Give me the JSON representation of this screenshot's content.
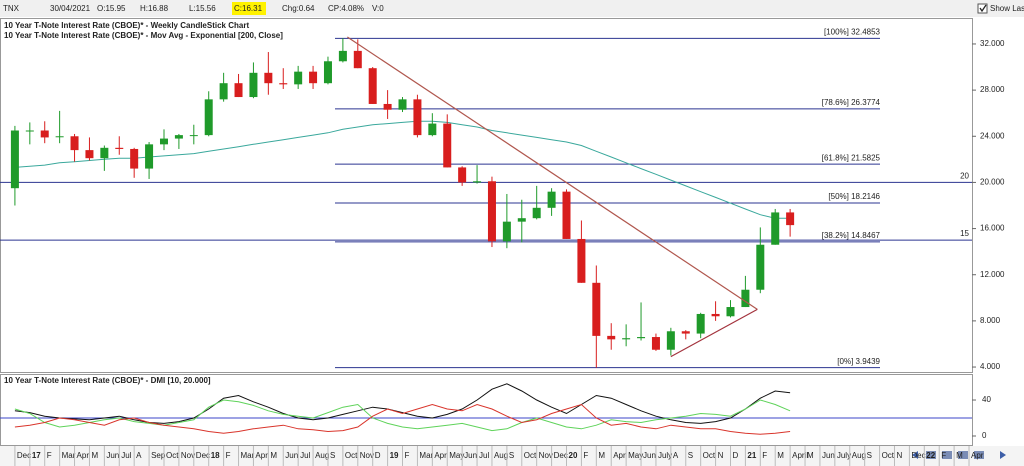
{
  "toolbar": {
    "symbol": "TNX",
    "date": "30/04/2021",
    "open": "O:15.95",
    "high": "H:16.88",
    "low": "L:15.56",
    "close": "C:16.31",
    "change": "Chg:0.64",
    "change_pct": "CP:4.08%",
    "volume": "V:0",
    "show_last": "Show Last"
  },
  "chart_data": [
    {
      "type": "candlestick",
      "title": "10 Year T-Note Interest Rate (CBOE)* - Weekly CandleStick Chart",
      "x": [
        0,
        1,
        2,
        3,
        4,
        5,
        6,
        7,
        8,
        9,
        10,
        11,
        12,
        13,
        14,
        15,
        16,
        17,
        18,
        19,
        20,
        21,
        22,
        23,
        24,
        25,
        26,
        27,
        28,
        29,
        30,
        31,
        32,
        33,
        34,
        35,
        36,
        37,
        38,
        39,
        40,
        41,
        42,
        43,
        44,
        45,
        46,
        47,
        48,
        49,
        50,
        51,
        52
      ],
      "open": [
        19.5,
        24.5,
        24.5,
        24.0,
        24.0,
        22.8,
        22.1,
        23.0,
        22.9,
        21.2,
        23.3,
        23.8,
        24.1,
        24.1,
        27.2,
        28.6,
        27.4,
        29.5,
        28.6,
        28.5,
        29.6,
        28.6,
        30.5,
        31.4,
        29.9,
        26.8,
        26.3,
        27.2,
        24.1,
        25.1,
        21.3,
        20.0,
        20.1,
        14.9,
        16.6,
        16.9,
        17.8,
        19.2,
        15.1,
        11.3,
        6.7,
        6.4,
        6.5,
        6.6,
        5.5,
        7.1,
        6.9,
        8.6,
        8.4,
        9.2,
        10.7,
        14.6,
        17.4
      ],
      "high": [
        24.9,
        25.2,
        25.3,
        26.2,
        24.2,
        23.9,
        23.2,
        24.0,
        23.0,
        23.5,
        24.6,
        24.2,
        25.0,
        27.9,
        29.5,
        29.4,
        30.4,
        31.3,
        29.9,
        30.1,
        30.1,
        30.9,
        32.5,
        32.4,
        30.0,
        28.0,
        27.4,
        27.6,
        26.0,
        25.9,
        21.4,
        21.5,
        20.5,
        19.0,
        18.5,
        19.7,
        19.5,
        19.4,
        16.7,
        12.8,
        7.8,
        7.7,
        9.6,
        6.9,
        7.4,
        7.2,
        8.7,
        9.7,
        9.8,
        11.9,
        16.1,
        17.7,
        17.7
      ],
      "low": [
        18.0,
        23.3,
        23.4,
        23.4,
        21.8,
        21.9,
        21.0,
        22.4,
        20.4,
        20.3,
        22.8,
        22.9,
        23.3,
        24.0,
        27.0,
        27.4,
        27.3,
        27.6,
        28.1,
        28.1,
        28.1,
        28.5,
        30.4,
        29.9,
        26.8,
        25.5,
        26.1,
        23.9,
        24.0,
        21.3,
        19.7,
        19.9,
        14.4,
        14.3,
        14.8,
        16.8,
        17.1,
        15.1,
        11.3,
        3.94,
        5.5,
        5.8,
        6.3,
        5.4,
        5.0,
        6.4,
        6.5,
        8.0,
        8.3,
        9.2,
        10.4,
        14.6,
        15.3
      ],
      "close": [
        24.5,
        24.5,
        23.9,
        24.0,
        22.8,
        22.1,
        23.0,
        22.9,
        21.2,
        23.3,
        23.8,
        24.1,
        24.1,
        27.2,
        28.6,
        27.4,
        29.5,
        28.6,
        28.5,
        29.6,
        28.6,
        30.5,
        31.4,
        29.9,
        26.8,
        26.3,
        27.2,
        24.1,
        25.1,
        21.3,
        20.0,
        20.1,
        14.9,
        16.6,
        16.9,
        17.8,
        19.2,
        15.1,
        11.3,
        6.7,
        6.4,
        6.5,
        6.6,
        5.5,
        7.1,
        6.9,
        8.6,
        8.4,
        9.2,
        10.7,
        14.6,
        17.4,
        16.3
      ],
      "up_color": "#1f9a2a",
      "down_color": "#d81e1e",
      "series": [
        {
          "name": "10 Year T-Note Interest Rate (CBOE)* - Mov Avg - Exponential [200, Close]",
          "color": "#3aa89c",
          "values": [
            21.3,
            21.4,
            21.5,
            21.7,
            21.8,
            21.9,
            22.0,
            22.1,
            22.1,
            22.2,
            22.3,
            22.4,
            22.5,
            22.7,
            22.9,
            23.1,
            23.3,
            23.5,
            23.7,
            23.9,
            24.1,
            24.3,
            24.6,
            24.8,
            25.0,
            25.1,
            25.2,
            25.3,
            25.3,
            25.2,
            25.0,
            24.8,
            24.5,
            24.3,
            24.1,
            23.9,
            23.7,
            23.5,
            23.2,
            22.7,
            22.2,
            21.7,
            21.2,
            20.7,
            20.2,
            19.7,
            19.2,
            18.7,
            18.2,
            17.7,
            17.2,
            16.9,
            16.9
          ]
        }
      ],
      "levels": [
        {
          "value": 32.4853,
          "label": "[100%] 32.4853"
        },
        {
          "value": 26.3774,
          "label": "[78.6%] 26.3774"
        },
        {
          "value": 21.5825,
          "label": "[61.8%] 21.5825"
        },
        {
          "value": 18.2146,
          "label": "[50%] 18.2146"
        },
        {
          "value": 14.8467,
          "label": "[38.2%] 14.8467"
        },
        {
          "value": 3.9439,
          "label": "[0%] 3.9439"
        }
      ],
      "level_color": "#2b3590",
      "hlines": [
        20,
        15
      ],
      "trendlines": [
        {
          "x": [
            22.3,
            49.8
          ],
          "y": [
            32.6,
            9.0
          ],
          "color": "#b0574e"
        },
        {
          "x": [
            44.0,
            49.8
          ],
          "y": [
            4.9,
            9.0
          ],
          "color": "#a3333d"
        }
      ],
      "xlim": [
        -1,
        64.2
      ],
      "ylim": [
        3.57,
        34.25
      ],
      "yticks": [
        {
          "value": 4,
          "label": "4.000"
        },
        {
          "value": 8,
          "label": "8.000"
        },
        {
          "value": 12,
          "label": "12.000"
        },
        {
          "value": 16,
          "label": "16.000"
        },
        {
          "value": 20,
          "label": "20.000"
        },
        {
          "value": 24,
          "label": "24.000"
        },
        {
          "value": 28,
          "label": "28.000"
        },
        {
          "value": 32,
          "label": "32.000"
        }
      ]
    },
    {
      "type": "line",
      "title": "10 Year T-Note Interest Rate (CBOE)* - DMI [10, 20.000]",
      "x": [
        0,
        1,
        2,
        3,
        4,
        5,
        6,
        7,
        8,
        9,
        10,
        11,
        12,
        13,
        14,
        15,
        16,
        17,
        18,
        19,
        20,
        21,
        22,
        23,
        24,
        25,
        26,
        27,
        28,
        29,
        30,
        31,
        32,
        33,
        34,
        35,
        36,
        37,
        38,
        39,
        40,
        41,
        42,
        43,
        44,
        45,
        46,
        47,
        48,
        49,
        50,
        51,
        52
      ],
      "series": [
        {
          "color": "#111111",
          "values": [
            28,
            26,
            22,
            20,
            19,
            18,
            20,
            22,
            18,
            15,
            14,
            16,
            20,
            30,
            42,
            45,
            38,
            32,
            25,
            20,
            18,
            20,
            24,
            28,
            32,
            30,
            26,
            22,
            20,
            24,
            30,
            40,
            52,
            58,
            50,
            40,
            32,
            25,
            35,
            45,
            42,
            35,
            28,
            22,
            18,
            15,
            14,
            16,
            20,
            30,
            42,
            50,
            48
          ]
        },
        {
          "color": "#5fd35a",
          "values": [
            30,
            25,
            15,
            10,
            12,
            15,
            18,
            20,
            16,
            14,
            12,
            15,
            18,
            32,
            40,
            38,
            34,
            28,
            24,
            22,
            20,
            26,
            32,
            35,
            20,
            14,
            10,
            8,
            10,
            12,
            14,
            10,
            6,
            8,
            15,
            20,
            15,
            10,
            8,
            12,
            18,
            16,
            15,
            18,
            20,
            22,
            25,
            24,
            22,
            30,
            40,
            35,
            28
          ]
        },
        {
          "color": "#d9342b",
          "values": [
            10,
            12,
            15,
            20,
            18,
            15,
            12,
            18,
            20,
            15,
            12,
            10,
            8,
            5,
            3,
            5,
            8,
            10,
            12,
            8,
            7,
            5,
            6,
            10,
            22,
            30,
            25,
            30,
            35,
            30,
            28,
            35,
            30,
            22,
            15,
            18,
            25,
            30,
            35,
            20,
            12,
            14,
            10,
            8,
            12,
            10,
            8,
            8,
            5,
            3,
            2,
            3,
            5
          ]
        }
      ],
      "hlines": [
        20
      ],
      "hline_color": "#3b45c8",
      "xlim": [
        -1,
        64.2
      ],
      "ylim": [
        -8.9,
        66.7
      ],
      "yticks": [
        0,
        40
      ],
      "xticks": [
        {
          "value": 0,
          "label": "Dec"
        },
        {
          "value": 1,
          "label": "17"
        },
        {
          "value": 2,
          "label": "F"
        },
        {
          "value": 3,
          "label": "Mar"
        },
        {
          "value": 4,
          "label": "Apr"
        },
        {
          "value": 5,
          "label": "M"
        },
        {
          "value": 6,
          "label": "Jun"
        },
        {
          "value": 7,
          "label": "Jul"
        },
        {
          "value": 8,
          "label": "A"
        },
        {
          "value": 9,
          "label": "Sep"
        },
        {
          "value": 10,
          "label": "Oct"
        },
        {
          "value": 11,
          "label": "Nov"
        },
        {
          "value": 12,
          "label": "Dec"
        },
        {
          "value": 13,
          "label": "18"
        },
        {
          "value": 14,
          "label": "F"
        },
        {
          "value": 15,
          "label": "Mar"
        },
        {
          "value": 16,
          "label": "Apr"
        },
        {
          "value": 17,
          "label": "M"
        },
        {
          "value": 18,
          "label": "Jun"
        },
        {
          "value": 19,
          "label": "Jul"
        },
        {
          "value": 20,
          "label": "Aug"
        },
        {
          "value": 21,
          "label": "S"
        },
        {
          "value": 22,
          "label": "Oct"
        },
        {
          "value": 23,
          "label": "Nov"
        },
        {
          "value": 24,
          "label": "D"
        },
        {
          "value": 25,
          "label": "19"
        },
        {
          "value": 26,
          "label": "F"
        },
        {
          "value": 27,
          "label": "Mar"
        },
        {
          "value": 28,
          "label": "Apr"
        },
        {
          "value": 29,
          "label": "May"
        },
        {
          "value": 30,
          "label": "Jun"
        },
        {
          "value": 31,
          "label": "Jul"
        },
        {
          "value": 32,
          "label": "Aug"
        },
        {
          "value": 33,
          "label": "S"
        },
        {
          "value": 34,
          "label": "Oct"
        },
        {
          "value": 35,
          "label": "Nov"
        },
        {
          "value": 36,
          "label": "Dec"
        },
        {
          "value": 37,
          "label": "20"
        },
        {
          "value": 38,
          "label": "F"
        },
        {
          "value": 39,
          "label": "M"
        },
        {
          "value": 40,
          "label": "Apr"
        },
        {
          "value": 41,
          "label": "May"
        },
        {
          "value": 42,
          "label": "Jun"
        },
        {
          "value": 43,
          "label": "July"
        },
        {
          "value": 44,
          "label": "A"
        },
        {
          "value": 45,
          "label": "S"
        },
        {
          "value": 46,
          "label": "Oct"
        },
        {
          "value": 47,
          "label": "N"
        },
        {
          "value": 48,
          "label": "D"
        },
        {
          "value": 49,
          "label": "21"
        },
        {
          "value": 50,
          "label": "F"
        },
        {
          "value": 51,
          "label": "M"
        },
        {
          "value": 52,
          "label": "April"
        },
        {
          "value": 53,
          "label": "M"
        },
        {
          "value": 54,
          "label": "Jun"
        },
        {
          "value": 55,
          "label": "July"
        },
        {
          "value": 56,
          "label": "Aug"
        },
        {
          "value": 57,
          "label": "S"
        },
        {
          "value": 58,
          "label": "Oct"
        },
        {
          "value": 59,
          "label": "N"
        },
        {
          "value": 60,
          "label": "Dec"
        },
        {
          "value": 61,
          "label": "22"
        },
        {
          "value": 62,
          "label": "F"
        },
        {
          "value": 63,
          "label": "M"
        },
        {
          "value": 64,
          "label": "Apr"
        }
      ]
    }
  ]
}
